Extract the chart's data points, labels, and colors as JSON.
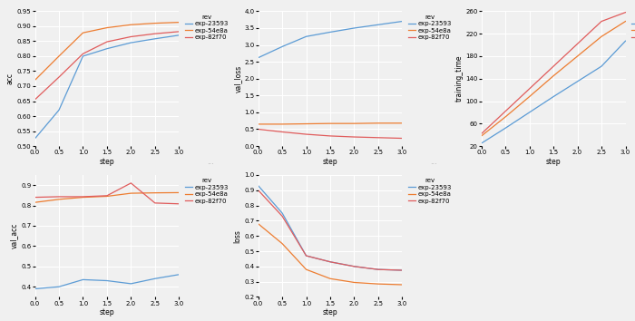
{
  "steps": [
    0.0,
    0.5,
    1.0,
    1.5,
    2.0,
    2.5,
    3.0
  ],
  "colors": {
    "exp-23593": "#5b9bd5",
    "exp-54e8a": "#ed7d31",
    "exp-82f70": "#e05c5c"
  },
  "legend_labels": [
    "exp-23593",
    "exp-54e8a",
    "exp-82f70"
  ],
  "acc": {
    "exp-23593": [
      0.525,
      0.62,
      0.8,
      0.825,
      0.845,
      0.858,
      0.87
    ],
    "exp-54e8a": [
      0.72,
      0.8,
      0.878,
      0.895,
      0.905,
      0.91,
      0.913
    ],
    "exp-82f70": [
      0.655,
      0.73,
      0.808,
      0.848,
      0.865,
      0.875,
      0.882
    ]
  },
  "val_loss": {
    "exp-23593": [
      2.62,
      2.95,
      3.25,
      3.38,
      3.5,
      3.6,
      3.7
    ],
    "exp-54e8a": [
      0.65,
      0.65,
      0.66,
      0.67,
      0.67,
      0.68,
      0.68
    ],
    "exp-82f70": [
      0.5,
      0.42,
      0.35,
      0.3,
      0.27,
      0.25,
      0.23
    ]
  },
  "training_time": {
    "exp-23593": [
      25,
      52,
      80,
      108,
      135,
      162,
      207
    ],
    "exp-54e8a": [
      38,
      72,
      108,
      145,
      180,
      215,
      242
    ],
    "exp-82f70": [
      42,
      82,
      122,
      162,
      202,
      242,
      258
    ]
  },
  "val_acc": {
    "exp-23593": [
      0.39,
      0.4,
      0.435,
      0.43,
      0.415,
      0.44,
      0.46
    ],
    "exp-54e8a": [
      0.815,
      0.83,
      0.84,
      0.845,
      0.86,
      0.862,
      0.863
    ],
    "exp-82f70": [
      0.84,
      0.843,
      0.843,
      0.848,
      0.91,
      0.812,
      0.808
    ]
  },
  "loss": {
    "exp-23593": [
      0.93,
      0.75,
      0.47,
      0.43,
      0.4,
      0.38,
      0.375
    ],
    "exp-54e8a": [
      0.68,
      0.55,
      0.38,
      0.32,
      0.295,
      0.285,
      0.28
    ],
    "exp-82f70": [
      0.9,
      0.73,
      0.47,
      0.43,
      0.4,
      0.38,
      0.375
    ]
  },
  "acc_ylim": [
    0.5,
    0.95
  ],
  "val_loss_ylim": [
    0.0,
    4.0
  ],
  "training_time_ylim": [
    20,
    260
  ],
  "val_acc_ylim": [
    0.35,
    0.95
  ],
  "loss_ylim": [
    0.2,
    1.0
  ],
  "background_color": "#f0f0f0",
  "grid_color": "#ffffff",
  "label_fontsize": 5.5,
  "tick_fontsize": 5.0,
  "legend_fontsize": 5.0
}
